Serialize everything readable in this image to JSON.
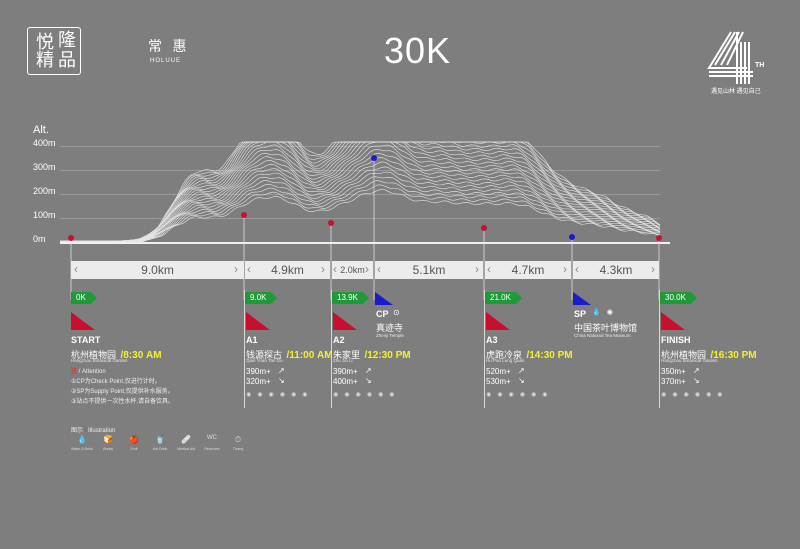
{
  "header": {
    "logo_chars": [
      "隆",
      "悦",
      "精",
      "品"
    ],
    "brand_cn": "常 惠",
    "brand_en": "HOLUUE",
    "distance": "30K",
    "badge_number": "4",
    "badge_suffix": "TH",
    "tagline": "遇见山林 遇见自己"
  },
  "elevation": {
    "axis_title": "Alt.",
    "labels": [
      "400m",
      "300m",
      "200m",
      "100m",
      "0m"
    ]
  },
  "segments": [
    {
      "label": "9.0km"
    },
    {
      "label": "4.9km"
    },
    {
      "label": "2.0km"
    },
    {
      "label": "5.1km"
    },
    {
      "label": "4.7km"
    },
    {
      "label": "4.3km"
    }
  ],
  "checkpoints": [
    {
      "km": "0K",
      "code": "START",
      "cn": "杭州植物园",
      "en": "Hangzhou Botanical Garden",
      "time": "8:30 AM",
      "climb_up": "",
      "climb_down": ""
    },
    {
      "km": "9.0K",
      "code": "A1",
      "cn": "钱源探古",
      "en": "Qian Yuan Tan Gu",
      "time": "11:00 AM",
      "climb_up": "390m+",
      "climb_down": "320m+"
    },
    {
      "km": "13.9K",
      "code": "A2",
      "cn": "朱家里",
      "en": "Zhu Jia Li",
      "time": "12:30 PM",
      "climb_up": "390m+",
      "climb_down": "400m+"
    },
    {
      "km": "",
      "code": "CP",
      "cn": "真迹寺",
      "en": "Zhenji Temple",
      "time": "",
      "climb_up": "",
      "climb_down": ""
    },
    {
      "km": "21.0K",
      "code": "A3",
      "cn": "虎跑冷泉",
      "en": "Hu Pao Leng Quan",
      "time": "14:30 PM",
      "climb_up": "520m+",
      "climb_down": "530m+"
    },
    {
      "km": "",
      "code": "SP",
      "cn": "中国茶叶博物馆",
      "en": "China National Tea Museum",
      "time": "",
      "climb_up": "",
      "climb_down": ""
    },
    {
      "km": "30.0K",
      "code": "FINISH",
      "cn": "杭州植物园",
      "en": "Hangzhou Botanical Garden",
      "time": "16:30 PM",
      "climb_up": "350m+",
      "climb_down": "370m+"
    }
  ],
  "attention": {
    "title_mark": "注",
    "title": "Attention",
    "lines": [
      "①CP为Check Point,仅进行计时。",
      "②SP为Supply Point,仅提供补水服务。",
      "③站点不提供一次性水杯,请自备饮具。"
    ]
  },
  "illustration": {
    "title_cn": "图示",
    "title_en": "Illustration",
    "items": [
      {
        "icon": "💧",
        "label": "Water & Drink"
      },
      {
        "icon": "🍞",
        "label": "Bread"
      },
      {
        "icon": "🍎",
        "label": "Fruit"
      },
      {
        "icon": "🥤",
        "label": "Hot Drink"
      },
      {
        "icon": "🩹",
        "label": "Medical Aid"
      },
      {
        "icon": "WC",
        "label": "Restroom"
      },
      {
        "icon": "⏱",
        "label": "Timing"
      }
    ]
  },
  "colors": {
    "background": "#7e7e7e",
    "km_badge": "#1f9a38",
    "aid_flag": "#c8102e",
    "cp_flag": "#1a1ad1",
    "time_text": "#f2f230"
  }
}
